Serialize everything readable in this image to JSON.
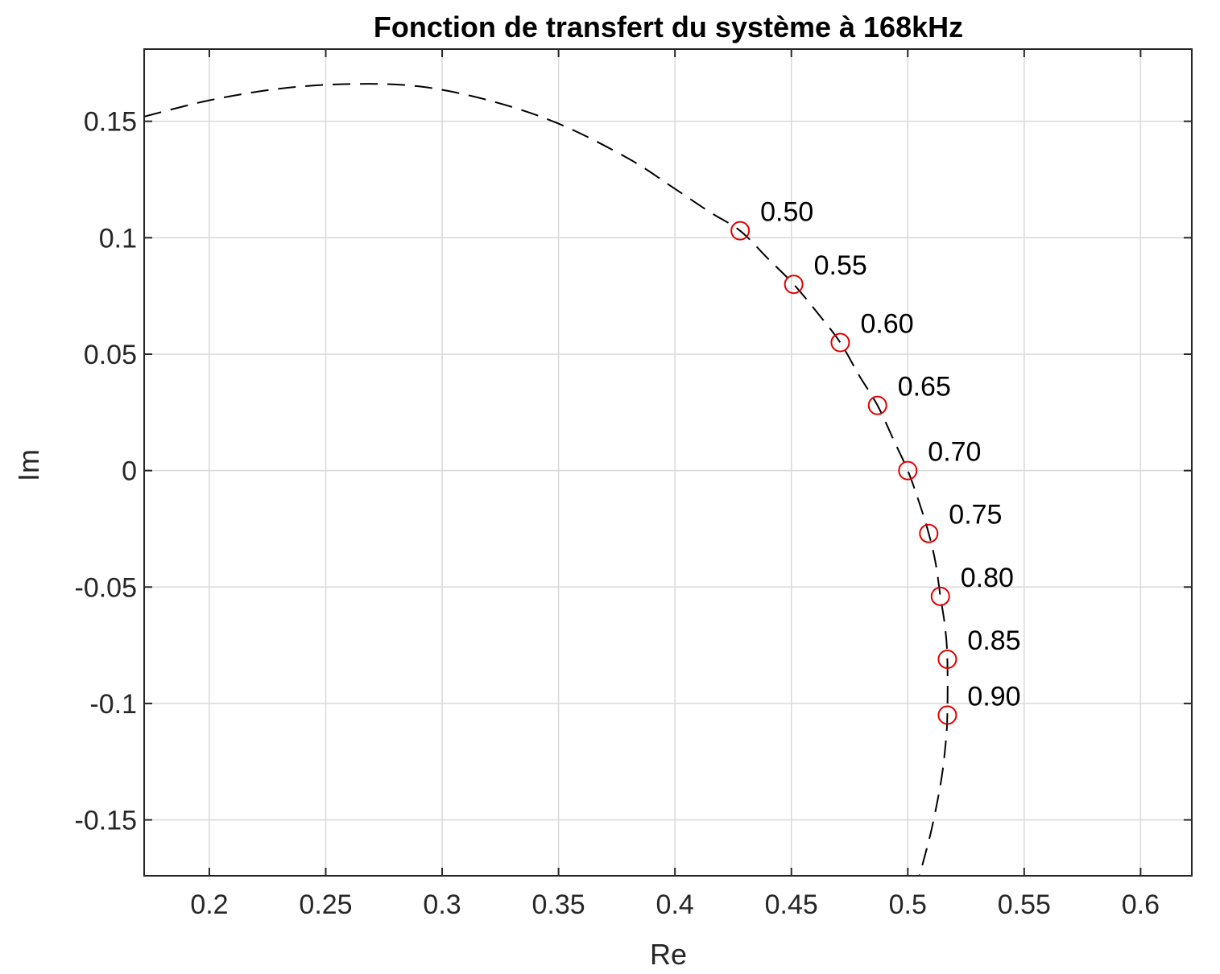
{
  "chart_data": {
    "type": "line",
    "title": "Fonction de transfert du système à 168kHz",
    "xlabel": "Re",
    "ylabel": "Im",
    "xlim": [
      0.172,
      0.622
    ],
    "ylim": [
      -0.174,
      0.181
    ],
    "xticks": [
      0.2,
      0.25,
      0.3,
      0.35,
      0.4,
      0.45,
      0.5,
      0.55,
      0.6
    ],
    "xtick_labels": [
      "0.2",
      "0.25",
      "0.3",
      "0.35",
      "0.4",
      "0.45",
      "0.5",
      "0.55",
      "0.6"
    ],
    "yticks": [
      -0.15,
      -0.1,
      -0.05,
      0,
      0.05,
      0.1,
      0.15
    ],
    "ytick_labels": [
      "-0.15",
      "-0.1",
      "-0.05",
      "0",
      "0.05",
      "0.1",
      "0.15"
    ],
    "grid": true,
    "series": [
      {
        "style": "dashed",
        "color": "#000000",
        "x": [
          0.172,
          0.2,
          0.23,
          0.26,
          0.29,
          0.32,
          0.35,
          0.38,
          0.4,
          0.415,
          0.428,
          0.44,
          0.451,
          0.461,
          0.471,
          0.479,
          0.487,
          0.494,
          0.5,
          0.505,
          0.509,
          0.512,
          0.514,
          0.516,
          0.517,
          0.517,
          0.516,
          0.514,
          0.51,
          0.505
        ],
        "y": [
          0.152,
          0.159,
          0.164,
          0.166,
          0.165,
          0.159,
          0.149,
          0.134,
          0.121,
          0.111,
          0.103,
          0.091,
          0.08,
          0.068,
          0.055,
          0.041,
          0.028,
          0.013,
          0.0,
          -0.014,
          -0.027,
          -0.04,
          -0.054,
          -0.067,
          -0.081,
          -0.105,
          -0.12,
          -0.135,
          -0.155,
          -0.174
        ]
      },
      {
        "style": "circle-markers",
        "color": "#e00000",
        "x": [
          0.428,
          0.451,
          0.471,
          0.487,
          0.5,
          0.509,
          0.514,
          0.517,
          0.517
        ],
        "y": [
          0.103,
          0.08,
          0.055,
          0.028,
          0.0,
          -0.027,
          -0.054,
          -0.081,
          -0.105
        ],
        "labels": [
          "0.50",
          "0.55",
          "0.60",
          "0.65",
          "0.70",
          "0.75",
          "0.80",
          "0.85",
          "0.90"
        ]
      }
    ]
  }
}
